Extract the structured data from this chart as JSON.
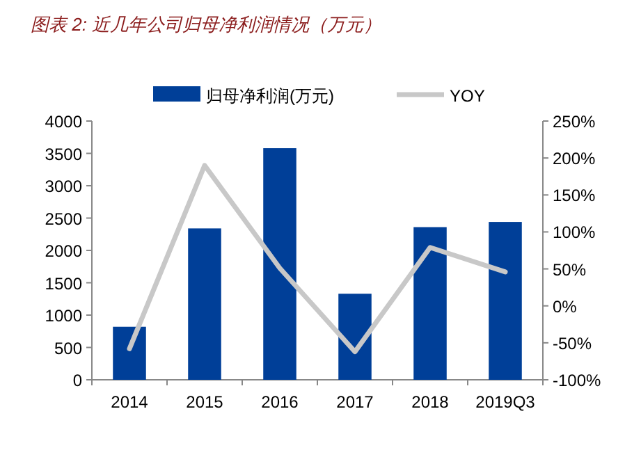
{
  "chart_data": {
    "type": "bar",
    "title": "图表 2: 近几年公司归母净利润情况（万元）",
    "categories": [
      "2014",
      "2015",
      "2016",
      "2017",
      "2018",
      "2019Q3"
    ],
    "series": [
      {
        "name": "归母净利润(万元)",
        "color": "#003f98",
        "values": [
          820,
          2340,
          3580,
          1330,
          2360,
          2440
        ]
      },
      {
        "name": "YOY",
        "type": "line",
        "axis": "y2",
        "color": "#c8c8c8",
        "values": [
          -58,
          190,
          51,
          -62,
          79,
          46
        ]
      }
    ],
    "ylim": [
      0,
      4000
    ],
    "yticks": [
      0,
      500,
      1000,
      1500,
      2000,
      2500,
      3000,
      3500,
      4000
    ],
    "y2lim": [
      -100,
      250
    ],
    "y2ticks": [
      {
        "value": -100,
        "label": "-100%"
      },
      {
        "value": -50,
        "label": "-50%"
      },
      {
        "value": 0,
        "label": "0%"
      },
      {
        "value": 50,
        "label": "50%"
      },
      {
        "value": 100,
        "label": "100%"
      },
      {
        "value": 150,
        "label": "150%"
      },
      {
        "value": 200,
        "label": "200%"
      },
      {
        "value": 250,
        "label": "250%"
      }
    ],
    "legend": "top",
    "grid": false
  }
}
